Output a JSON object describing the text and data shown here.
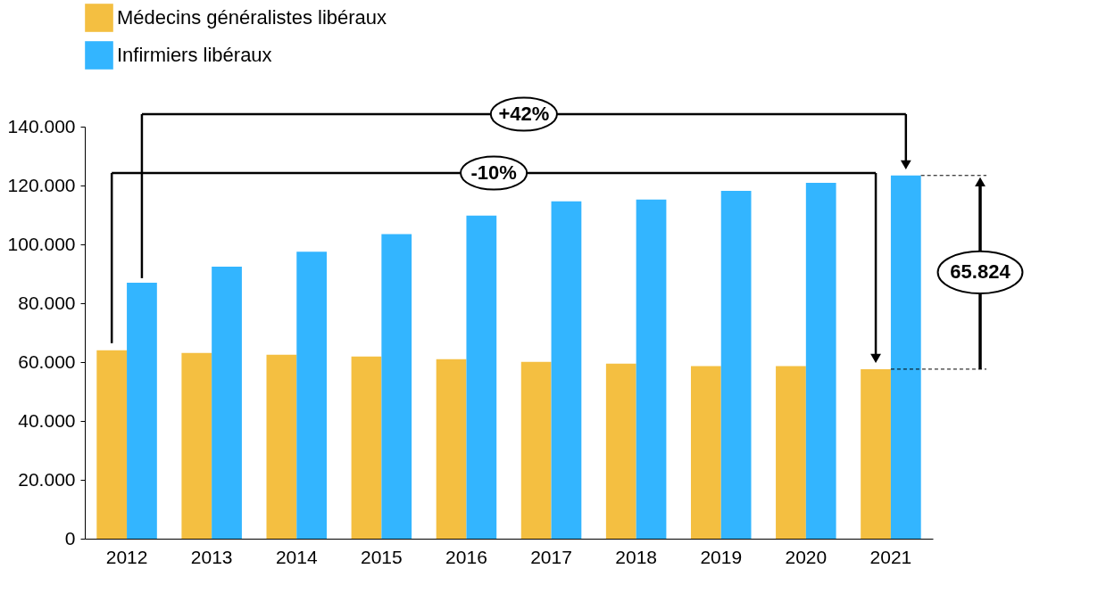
{
  "chart_data": {
    "type": "bar",
    "categories": [
      "2012",
      "2013",
      "2014",
      "2015",
      "2016",
      "2017",
      "2018",
      "2019",
      "2020",
      "2021"
    ],
    "series": [
      {
        "name": "Médecins généralistes libéraux",
        "color": "#f4bf41",
        "values": [
          64000,
          63100,
          62500,
          61900,
          61000,
          60100,
          59500,
          58600,
          58600,
          57600
        ]
      },
      {
        "name": "Infirmiers libéraux",
        "color": "#33b5ff",
        "values": [
          87000,
          92400,
          97500,
          103500,
          109800,
          114600,
          115200,
          118200,
          120900,
          123400
        ]
      }
    ],
    "ylim": [
      0,
      140000
    ],
    "yticks": [
      0,
      {
        "value": 20000,
        "label": "20.000"
      },
      {
        "value": 40000,
        "label": "40.000"
      },
      {
        "value": 60000,
        "label": "60.000"
      },
      {
        "value": 80000,
        "label": "80.000"
      },
      {
        "value": 100000,
        "label": "100.000"
      },
      {
        "value": 120000,
        "label": "120.000"
      },
      {
        "value": 140000,
        "label": "140.000"
      }
    ],
    "annotations": [
      "+42%",
      "-10%",
      "65.824"
    ],
    "legend": "top left",
    "grid": false
  }
}
